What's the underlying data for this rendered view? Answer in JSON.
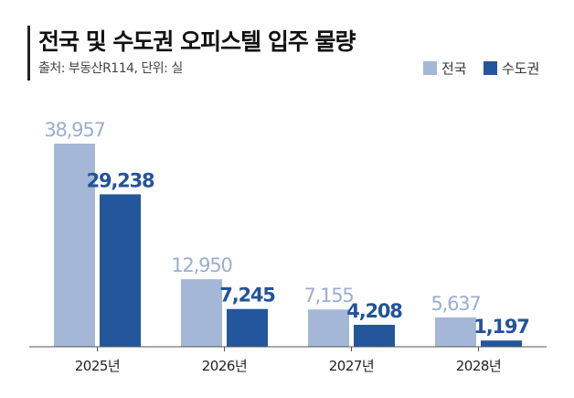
{
  "title": "전국 및 수도권 오피스텔 입주 물량",
  "subtitle": "출처: 부동산R114, 단위: 실",
  "chart_data": {
    "type": "bar",
    "categories": [
      "2025년",
      "2026년",
      "2027년",
      "2028년"
    ],
    "series": [
      {
        "name": "전국",
        "values": [
          38957,
          12950,
          7155,
          5637
        ],
        "labels": [
          "38,957",
          "12,950",
          "7,155",
          "5,637"
        ],
        "color": "#a4b7d7",
        "label_color": "#9aaed0"
      },
      {
        "name": "수도권",
        "values": [
          29238,
          7245,
          4208,
          1197
        ],
        "labels": [
          "29,238",
          "7,245",
          "4,208",
          "1,197"
        ],
        "color": "#23569b",
        "label_color": "#23539a"
      }
    ],
    "xlabel": "",
    "ylabel": "",
    "ylim": [
      0,
      39000
    ],
    "grid": false,
    "legend": "top-right"
  }
}
